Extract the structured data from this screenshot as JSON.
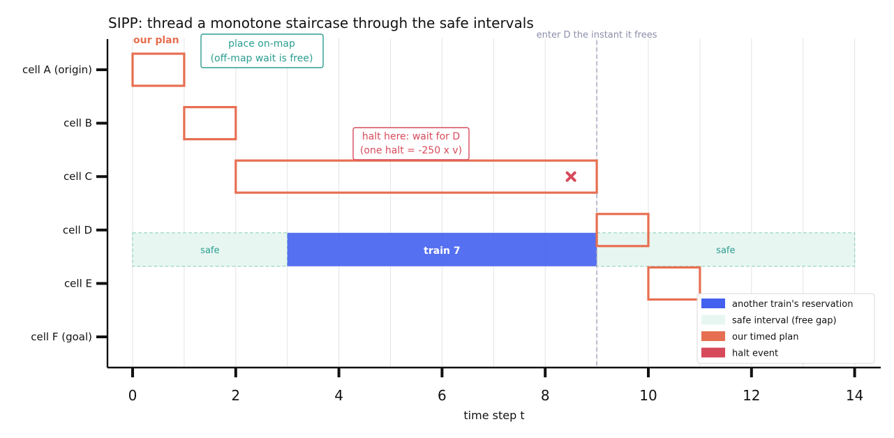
{
  "chart_data": {
    "type": "gantt",
    "title": "SIPP: thread a monotone staircase through the safe intervals",
    "xlabel": "time step  t",
    "ylabel": "",
    "xlim": [
      -0.5,
      14.5
    ],
    "xticks": [
      0,
      2,
      4,
      6,
      8,
      10,
      12,
      14
    ],
    "xtick_labels": [
      "0",
      "2",
      "4",
      "6",
      "8",
      "10",
      "12",
      "14"
    ],
    "rows": [
      "cell A (origin)",
      "cell B",
      "cell C",
      "cell D",
      "cell E",
      "cell F (goal)"
    ],
    "grid": "vertical",
    "safe_intervals": [
      {
        "row": "cell D",
        "start": 0,
        "end": 3,
        "label": "safe"
      },
      {
        "row": "cell D",
        "start": 9,
        "end": 14,
        "label": "safe"
      }
    ],
    "reservations": [
      {
        "row": "cell D",
        "start": 3,
        "end": 9,
        "label": "train 7"
      }
    ],
    "plan": [
      {
        "row": "cell A (origin)",
        "start": 0,
        "end": 1
      },
      {
        "row": "cell B",
        "start": 1,
        "end": 2
      },
      {
        "row": "cell C",
        "start": 2,
        "end": 9
      },
      {
        "row": "cell D",
        "start": 9,
        "end": 10
      },
      {
        "row": "cell E",
        "start": 10,
        "end": 11
      }
    ],
    "halt_events": [
      {
        "row": "cell C",
        "t": 8.5
      }
    ],
    "vline": {
      "t": 9,
      "label": "enter D the instant it frees"
    },
    "annotations": {
      "plan_label": "our plan",
      "onmap": [
        "place on-map",
        "(off-map wait is free)"
      ],
      "halt": [
        "halt here: wait for D",
        "(one halt = -250 x v)"
      ]
    },
    "legend": {
      "position": "lower-right",
      "entries": [
        {
          "label": "another train's reservation",
          "color": "#4361ee"
        },
        {
          "label": "safe interval (free gap)",
          "color": "#e8f6f1"
        },
        {
          "label": "our timed plan",
          "color": "#e76f51"
        },
        {
          "label": "halt event",
          "color": "#d64a5b"
        }
      ]
    },
    "colors": {
      "reservation": "#4361ee",
      "safe_fill": "#e8f6f1",
      "safe_edge": "#8fd3b8",
      "safe_text": "#2a9d8f",
      "plan": "#e76f51",
      "halt": "#d64a5b",
      "vline": "#a9adc6",
      "grid": "#e3e3e3"
    }
  }
}
